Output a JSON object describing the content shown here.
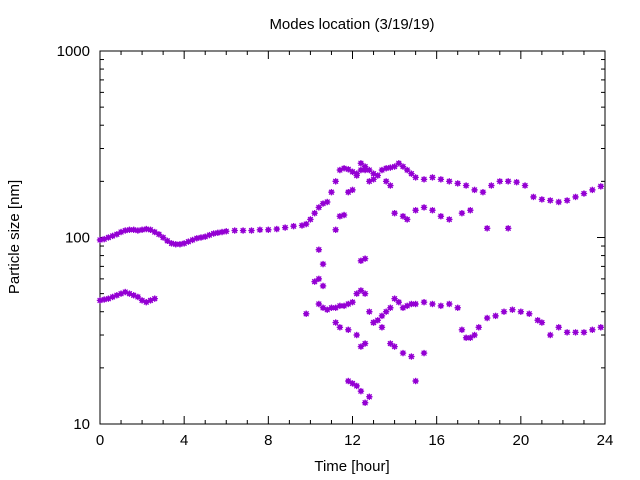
{
  "chart_data": {
    "type": "scatter",
    "title": "Modes location (3/19/19)",
    "xlabel": "Time [hour]",
    "ylabel": "Particle size [nm]",
    "xlim": [
      0,
      24
    ],
    "ylim": [
      10,
      1000
    ],
    "yscale": "log",
    "grid": false,
    "legend": "none",
    "marker_color": "#9400d3",
    "xticks": [
      0,
      4,
      8,
      12,
      16,
      20,
      24
    ],
    "xtick_labels": [
      "0",
      "4",
      "8",
      "12",
      "16",
      "20",
      "24"
    ],
    "yticks": [
      10,
      100,
      1000
    ],
    "ytick_labels": [
      "10",
      "100",
      "1000"
    ],
    "series": [
      {
        "x": [
          0.0,
          0.2,
          0.4,
          0.6,
          0.8,
          1.0,
          1.2,
          1.4,
          1.6,
          1.8,
          2.0,
          2.2,
          2.4,
          2.6,
          2.8,
          3.0,
          3.2,
          3.4,
          3.6,
          3.8,
          4.0,
          4.2,
          4.4,
          4.6,
          4.8,
          5.0,
          5.2,
          5.4,
          5.6,
          5.8,
          6.0,
          6.4,
          6.8,
          7.2,
          7.6,
          8.0,
          8.4,
          8.8,
          9.2,
          9.6,
          9.8,
          10.0,
          10.2,
          10.4,
          10.6,
          10.8,
          11.0,
          11.2,
          11.4,
          11.6,
          11.8,
          12.0,
          12.2,
          12.4,
          12.6,
          12.8,
          13.0,
          13.2,
          13.4,
          13.6,
          13.8,
          14.0,
          14.2,
          14.4,
          14.6,
          14.8,
          15.0,
          15.4,
          15.8,
          16.2,
          16.6,
          17.0,
          17.4,
          17.8,
          18.2,
          18.6,
          19.0,
          19.4,
          19.8,
          20.2,
          20.6,
          21.0,
          21.4,
          21.8,
          22.2,
          22.6,
          23.0,
          23.4,
          23.8
        ],
        "y": [
          97,
          98,
          100,
          102,
          104,
          107,
          109,
          110,
          110,
          109,
          110,
          111,
          110,
          107,
          104,
          100,
          96,
          93,
          92,
          92,
          93,
          95,
          97,
          99,
          100,
          101,
          103,
          105,
          106,
          107,
          108,
          109,
          109,
          109,
          110,
          110,
          111,
          113,
          115,
          116,
          118,
          125,
          135,
          145,
          152,
          155,
          175,
          200,
          230,
          235,
          232,
          225,
          215,
          230,
          240,
          230,
          220,
          215,
          230,
          235,
          237,
          240,
          250,
          240,
          230,
          220,
          210,
          205,
          210,
          205,
          200,
          195,
          190,
          180,
          175,
          190,
          200,
          200,
          198,
          190,
          165,
          160,
          158,
          155,
          158,
          165,
          172,
          180,
          188
        ]
      },
      {
        "x": [
          0.0,
          0.2,
          0.4,
          0.6,
          0.8,
          1.0,
          1.2,
          1.4,
          1.6,
          1.8,
          2.0,
          2.2,
          2.4,
          2.6
        ],
        "y": [
          46,
          46.5,
          47,
          48,
          49,
          50,
          51,
          50,
          49,
          48,
          46,
          45,
          46,
          47
        ]
      },
      {
        "x": [
          9.8,
          10.4,
          10.6,
          10.8,
          11.0,
          11.2,
          11.4,
          11.6,
          11.8,
          12.0,
          12.2,
          12.4,
          12.6,
          12.8,
          13.0,
          13.2,
          13.4,
          13.6,
          13.8,
          14.0,
          14.2,
          14.4,
          14.6,
          14.8,
          15.0,
          15.4,
          15.8,
          16.2,
          16.6,
          17.0,
          17.2,
          17.4,
          17.6,
          17.8,
          18.0,
          18.4,
          18.8,
          19.2,
          19.6,
          20.0,
          20.4,
          20.8,
          21.0,
          21.4,
          21.8,
          22.2,
          22.6,
          23.0,
          23.4,
          23.8
        ],
        "y": [
          39,
          44,
          42,
          41,
          42,
          42,
          43,
          43,
          44,
          45,
          50,
          52,
          50,
          40,
          35,
          36,
          38,
          40,
          42,
          47,
          45,
          42,
          43,
          44,
          44,
          45,
          44,
          43,
          44,
          42,
          32,
          29,
          29,
          30,
          33,
          37,
          38,
          40,
          41,
          40,
          39,
          36,
          35,
          30,
          33,
          31,
          31,
          31,
          32,
          33
        ]
      },
      {
        "x": [
          10.4,
          10.6,
          11.2,
          11.4,
          11.6,
          11.8,
          12.0,
          12.2,
          12.4,
          12.6,
          12.8,
          13.0,
          13.6,
          13.8,
          14.0,
          14.4,
          14.6,
          15.0,
          15.4,
          15.8,
          16.2,
          16.6,
          17.2,
          17.6,
          18.4,
          19.4,
          11.2,
          11.4,
          11.8,
          12.2,
          12.4,
          12.6,
          12.4,
          12.6,
          11.8,
          12.0,
          12.2,
          12.4,
          12.6,
          12.8,
          13.4,
          13.8,
          14.4,
          14.8,
          15.0,
          15.4,
          14.0,
          10.2,
          10.4,
          10.6,
          13.0
        ],
        "y": [
          86,
          72,
          110,
          130,
          132,
          175,
          180,
          220,
          250,
          230,
          200,
          205,
          200,
          190,
          135,
          130,
          125,
          140,
          145,
          140,
          130,
          125,
          135,
          140,
          112,
          112,
          35,
          33,
          32,
          30,
          26,
          27,
          75,
          77,
          17,
          16.5,
          16,
          15,
          13,
          14,
          33,
          27,
          24,
          23,
          17,
          24,
          26,
          58,
          60,
          55,
          35
        ]
      }
    ]
  }
}
